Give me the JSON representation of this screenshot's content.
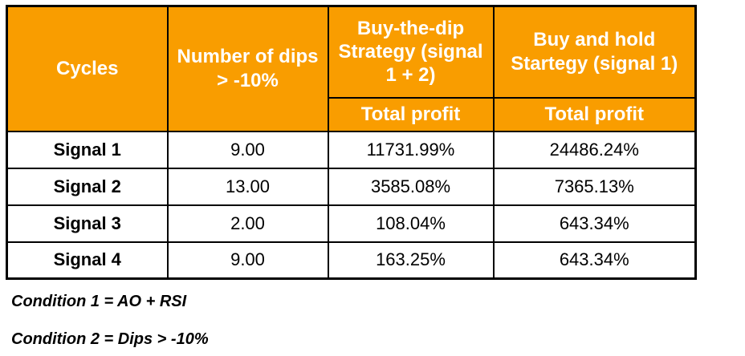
{
  "colors": {
    "header_bg": "#F99D00",
    "header_text": "#FFFFFF",
    "body_text": "#000000",
    "border": "#000000",
    "page_bg": "#FFFFFF"
  },
  "table": {
    "header": {
      "cycles": "Cycles",
      "dips": "Number of dips > -10%",
      "btd_strategy": "Buy-the-dip Strategy (signal 1 + 2)",
      "bah_strategy": "Buy and hold Startegy (signal 1)",
      "btd_sub": "Total profit",
      "bah_sub": "Total profit"
    },
    "rows": [
      {
        "cycle": "Signal 1",
        "dips": "9.00",
        "btd_profit": "11731.99%",
        "bah_profit": "24486.24%"
      },
      {
        "cycle": "Signal 2",
        "dips": "13.00",
        "btd_profit": "3585.08%",
        "bah_profit": "7365.13%"
      },
      {
        "cycle": "Signal 3",
        "dips": "2.00",
        "btd_profit": "108.04%",
        "bah_profit": "643.34%"
      },
      {
        "cycle": "Signal 4",
        "dips": "9.00",
        "btd_profit": "163.25%",
        "bah_profit": "643.34%"
      }
    ]
  },
  "notes": {
    "condition1": "Condition 1 = AO + RSI",
    "condition2": "Condition 2 = Dips > -10%"
  },
  "chart_data": {
    "type": "table",
    "title": "",
    "columns": [
      "Cycles",
      "Number of dips > -10%",
      "Buy-the-dip Strategy (signal 1 + 2) — Total profit",
      "Buy and hold Startegy (signal 1) — Total profit"
    ],
    "rows": [
      [
        "Signal 1",
        "9.00",
        "11731.99%",
        "24486.24%"
      ],
      [
        "Signal 2",
        "13.00",
        "3585.08%",
        "7365.13%"
      ],
      [
        "Signal 3",
        "2.00",
        "108.04%",
        "643.34%"
      ],
      [
        "Signal 4",
        "9.00",
        "163.25%",
        "643.34%"
      ]
    ],
    "notes": [
      "Condition 1 = AO + RSI",
      "Condition 2 = Dips > -10%"
    ],
    "layout": {
      "header_background": "#F99D00",
      "header_text_color": "#FFFFFF",
      "grid": true
    }
  }
}
